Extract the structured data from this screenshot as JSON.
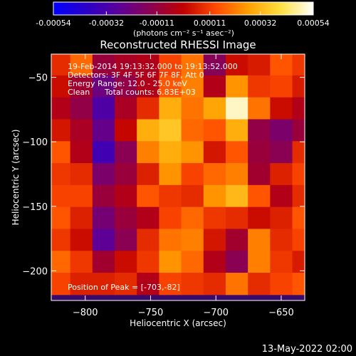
{
  "colorbar": {
    "tick_labels": [
      "-0.00054",
      "-0.00032",
      "-0.00011",
      "0.00011",
      "0.00032",
      "0.00054"
    ],
    "tick_values": [
      -0.00054,
      -0.00032,
      -0.00011,
      0.00011,
      0.00032,
      0.00054
    ],
    "range": [
      -0.00054,
      0.00054
    ],
    "units_label": "(photons cm⁻² s⁻¹ asec⁻²)",
    "colormap": [
      "#0000ff",
      "#2a00c8",
      "#5a009a",
      "#8c0050",
      "#c00000",
      "#ff4a00",
      "#ffa000",
      "#ffe040",
      "#ffffff"
    ]
  },
  "annotations": {
    "time": "19-Feb-2014 19:13:32.000 to 19:13:52.000",
    "detectors": "Detectors: 3F 4F 5F 6F 7F 8F, Att 0",
    "energy": "Energy Range: 12.0 - 25.0 keV",
    "clean_label": "Clean",
    "total_counts": "Total counts: 6.83E+03",
    "peak": "Position of Peak = [-703,-82]"
  },
  "footer_timestamp": "13-May-2022 02:00",
  "chart_data": {
    "type": "heatmap",
    "title": "Reconstructed RHESSI Image",
    "xlabel": "Heliocentric X (arcsec)",
    "ylabel": "Heliocentric Y (arcsec)",
    "xlim": [
      -826,
      -632
    ],
    "ylim": [
      -223,
      -32
    ],
    "x_ticks": [
      -800,
      -750,
      -700,
      -650
    ],
    "x_tick_labels": [
      "−800",
      "−750",
      "−700",
      "−650"
    ],
    "y_ticks": [
      -50,
      -100,
      -150,
      -200
    ],
    "y_tick_labels": [
      "−50",
      "−100",
      "−150",
      "−200"
    ],
    "value_range": [
      -0.00054,
      0.00054
    ],
    "peak_position": [
      -703,
      -82
    ],
    "grid_x": [
      -820,
      -803,
      -786,
      -769,
      -752,
      -735,
      -718,
      -701,
      -684,
      -667,
      -650,
      -633
    ],
    "grid_y": [
      -40,
      -57,
      -74,
      -91,
      -108,
      -125,
      -142,
      -159,
      -176,
      -193,
      -210
    ],
    "values": [
      [
        8e-05,
        0.00018,
        -0.0001,
        -6e-05,
        -4e-05,
        0.00012,
        0.0002,
        -0.00015,
        2e-05,
        5e-05,
        0.00015,
        0.0001
      ],
      [
        2e-05,
        -8e-05,
        -0.00022,
        -0.00012,
        -4e-05,
        0.00015,
        0.00022,
        -4e-05,
        0.00025,
        0.0001,
        0.00012,
        5e-05
      ],
      [
        -4e-05,
        -0.00012,
        -0.0003,
        -6e-05,
        8e-05,
        0.0003,
        0.0002,
        0.00028,
        0.0005,
        0.0002,
        2e-05,
        -4e-05
      ],
      [
        4e-05,
        -6e-05,
        -0.00024,
        1e-05,
        0.0003,
        0.00035,
        0.00018,
        0.00015,
        0.0003,
        -0.00012,
        -0.00018,
        -0.0001
      ],
      [
        0.00015,
        -4e-05,
        -0.00034,
        -0.00014,
        0.00022,
        0.0003,
        0.00025,
        4e-05,
        0.00015,
        -0.0001,
        -0.00014,
        8e-05
      ],
      [
        0.0001,
        8e-05,
        -0.00018,
        -0.0001,
        6e-05,
        0.00025,
        0.00012,
        0.00018,
        0.00022,
        -8e-05,
        6e-05,
        0.00012
      ],
      [
        0.00012,
        0.00012,
        -0.0001,
        -4e-05,
        0.00015,
        0.0001,
        8e-05,
        0.00025,
        0.00032,
        0.00015,
        -4e-05,
        8e-05
      ],
      [
        0.00015,
        6e-05,
        -0.0002,
        -0.0001,
        -4e-05,
        0.00012,
        0.00018,
        0.0001,
        8e-05,
        2e-05,
        6e-05,
        0.00015
      ],
      [
        0.0001,
        2e-05,
        -0.00026,
        -0.00014,
        8e-05,
        0.0002,
        0.00022,
        4e-05,
        -8e-05,
        0.00022,
        8e-05,
        0.00012
      ],
      [
        0.00018,
        0.0001,
        -8e-05,
        2e-05,
        0.0001,
        0.00025,
        0.00018,
        -4e-05,
        -0.00014,
        0.00022,
        0.0001,
        5e-05
      ],
      [
        0.00012,
        6e-05,
        6e-05,
        8e-05,
        -4e-05,
        0.00012,
        0.0001,
        8e-05,
        0.0002,
        8e-05,
        0.00012,
        0.00015
      ]
    ]
  }
}
